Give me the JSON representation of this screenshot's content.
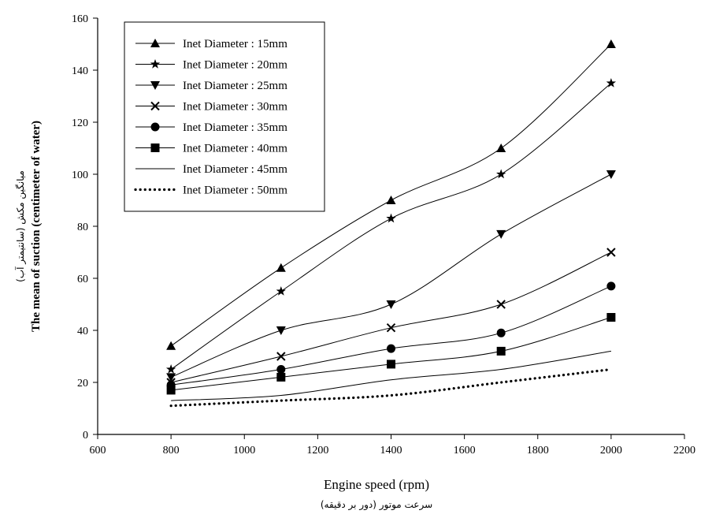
{
  "chart_data": {
    "type": "line",
    "xlabel": "Engine speed (rpm)",
    "xlabel_secondary": "سرعت موتور (دور بر دقیقه)",
    "ylabel": "The mean of suction (centimeter of water)",
    "ylabel_secondary": "میانگین مکش (سانتیمتر آب)",
    "xlim": [
      600,
      2200
    ],
    "ylim": [
      0,
      160
    ],
    "xticks": [
      600,
      800,
      1000,
      1200,
      1400,
      1600,
      1800,
      2000,
      2200
    ],
    "yticks": [
      0,
      20,
      40,
      60,
      80,
      100,
      120,
      140,
      160
    ],
    "grid": false,
    "legend_position": "top-left",
    "x": [
      800,
      1100,
      1400,
      1700,
      2000
    ],
    "series": [
      {
        "name": "Inet Diameter : 15mm",
        "marker": "triangle-up",
        "values": [
          34,
          64,
          90,
          110,
          150
        ]
      },
      {
        "name": "Inet Diameter : 20mm",
        "marker": "star",
        "values": [
          25,
          55,
          83,
          100,
          135
        ]
      },
      {
        "name": "Inet Diameter : 25mm",
        "marker": "triangle-down",
        "values": [
          22,
          40,
          50,
          77,
          100
        ]
      },
      {
        "name": "Inet Diameter : 30mm",
        "marker": "x",
        "values": [
          20,
          30,
          41,
          50,
          70
        ]
      },
      {
        "name": "Inet Diameter : 35mm",
        "marker": "circle",
        "values": [
          19,
          25,
          33,
          39,
          57
        ]
      },
      {
        "name": "Inet Diameter : 40mm",
        "marker": "square",
        "values": [
          17,
          22,
          27,
          32,
          45
        ]
      },
      {
        "name": "Inet Diameter : 45mm",
        "marker": "none",
        "values": [
          13,
          15,
          21,
          25,
          32
        ]
      },
      {
        "name": "Inet Diameter : 50mm",
        "marker": "dots",
        "values": [
          11,
          13,
          15,
          20,
          25
        ]
      }
    ]
  }
}
